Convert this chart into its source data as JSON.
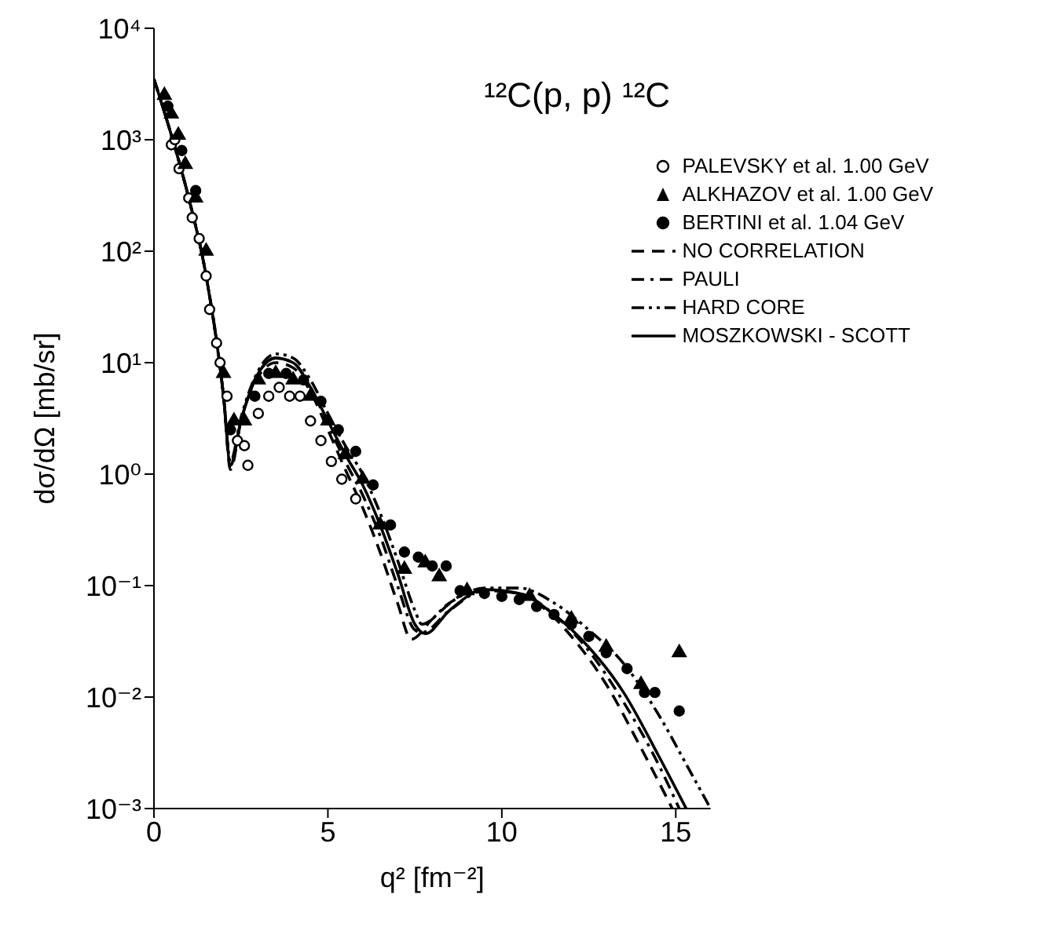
{
  "chart_data": {
    "type": "scatter",
    "title": "¹²C(p, p) ¹²C",
    "xlabel": "q² [fm⁻²]",
    "ylabel": "dσ/dΩ  [mb/sr]",
    "log": "y",
    "xlim": [
      0,
      16
    ],
    "xticks": [
      0,
      5,
      10,
      15
    ],
    "ylim": [
      0.001,
      10000
    ],
    "yticks": [
      {
        "value": 0.001,
        "label": "10⁻³"
      },
      {
        "value": 0.01,
        "label": "10⁻²"
      },
      {
        "value": 0.1,
        "label": "10⁻¹"
      },
      {
        "value": 1,
        "label": "10⁰"
      },
      {
        "value": 10,
        "label": "10¹"
      },
      {
        "value": 100,
        "label": "10²"
      },
      {
        "value": 1000,
        "label": "10³"
      },
      {
        "value": 10000,
        "label": "10⁴"
      }
    ],
    "legend": "top right",
    "series": [
      {
        "name": "PALEVSKY et al. 1.00 GeV",
        "marker": "circle",
        "color": "#000000",
        "x": [
          0.5,
          0.6,
          0.72,
          1.0,
          1.1,
          1.3,
          1.5,
          1.6,
          1.8,
          1.9,
          2.1,
          2.4,
          2.6,
          2.7,
          3.0,
          3.3,
          3.6,
          3.9,
          4.2,
          4.5,
          4.8,
          5.1,
          5.4,
          5.8
        ],
        "values": [
          900,
          1000,
          550,
          300,
          200,
          130,
          60,
          30,
          15,
          10,
          5,
          2,
          1.8,
          1.2,
          3.5,
          5,
          6,
          5,
          5,
          3,
          2,
          1.3,
          0.9,
          0.6
        ]
      },
      {
        "name": "ALKHAZOV et al. 1.00 GeV",
        "marker": "triangle",
        "color": "#000000",
        "x": [
          0.3,
          0.5,
          0.7,
          0.9,
          1.2,
          1.5,
          2.0,
          2.3,
          2.6,
          3.0,
          3.5,
          4.0,
          4.5,
          5.0,
          5.5,
          6.0,
          6.5,
          7.2,
          7.8,
          8.2,
          9.0,
          10.8,
          12.0,
          13.0,
          14.0,
          15.1
        ],
        "values": [
          2500,
          1700,
          1100,
          600,
          300,
          100,
          8,
          3,
          3,
          7,
          8,
          7,
          5,
          3,
          1.5,
          0.9,
          0.35,
          0.14,
          0.16,
          0.12,
          0.09,
          0.08,
          0.05,
          0.028,
          0.013,
          0.025
        ]
      },
      {
        "name": "BERTINI et al. 1.04 GeV",
        "marker": "circle",
        "color": "#000000",
        "x": [
          0.4,
          0.8,
          1.2,
          2.2,
          2.9,
          3.3,
          3.8,
          4.3,
          4.8,
          5.3,
          5.8,
          6.3,
          6.8,
          7.2,
          7.6,
          8.0,
          8.4,
          8.8,
          9.5,
          10.0,
          10.5,
          11.0,
          11.5,
          12.0,
          12.5,
          13.0,
          13.6,
          14.1,
          14.4,
          15.1
        ],
        "values": [
          2000,
          800,
          350,
          2.5,
          5,
          8,
          8,
          7,
          4.5,
          2.5,
          1.6,
          0.8,
          0.35,
          0.2,
          0.18,
          0.15,
          0.15,
          0.09,
          0.085,
          0.08,
          0.075,
          0.065,
          0.055,
          0.045,
          0.035,
          0.025,
          0.018,
          0.011,
          0.011,
          0.0075
        ]
      },
      {
        "name": "NO CORRELATION",
        "type": "line",
        "line_style": "dashed",
        "marker": "none",
        "color": "#000000",
        "x": [
          0,
          0.5,
          1,
          1.5,
          2,
          2.2,
          2.5,
          3,
          3.5,
          4,
          4.5,
          5,
          5.5,
          6,
          6.5,
          7,
          7.4,
          8,
          9,
          10,
          11,
          12,
          13,
          14,
          14.9
        ],
        "values": [
          3500,
          1100,
          300,
          60,
          5,
          1.1,
          3,
          7.5,
          10,
          9,
          5.5,
          2.5,
          1.1,
          0.5,
          0.2,
          0.07,
          0.033,
          0.05,
          0.085,
          0.09,
          0.07,
          0.035,
          0.013,
          0.0035,
          0.001
        ]
      },
      {
        "name": "PAULI",
        "type": "line",
        "line_style": "dashdot",
        "marker": "none",
        "color": "#000000",
        "x": [
          0,
          0.5,
          1,
          1.5,
          2,
          2.2,
          2.5,
          3,
          3.5,
          4,
          4.5,
          5,
          5.5,
          6,
          6.5,
          7,
          7.5,
          7.7,
          8.5,
          9.5,
          10.5,
          11.5,
          12.5,
          13.5,
          14.5,
          15.1
        ],
        "values": [
          3500,
          1100,
          300,
          60,
          5,
          1.2,
          3,
          8,
          11,
          10,
          6,
          2.8,
          1.3,
          0.65,
          0.28,
          0.1,
          0.04,
          0.038,
          0.06,
          0.09,
          0.085,
          0.055,
          0.026,
          0.009,
          0.0025,
          0.001
        ]
      },
      {
        "name": "HARD CORE",
        "type": "line",
        "line_style": "dashdotdot",
        "marker": "none",
        "color": "#000000",
        "x": [
          0,
          0.5,
          1,
          1.5,
          2,
          2.2,
          2.5,
          3,
          3.5,
          4,
          4.5,
          5,
          5.5,
          6,
          6.5,
          7,
          7.5,
          7.7,
          8.5,
          9.5,
          10.5,
          11.5,
          12.5,
          13.5,
          14.5,
          15.3,
          16
        ],
        "values": [
          3500,
          1100,
          300,
          60,
          5,
          1.3,
          3.2,
          8.5,
          12,
          11,
          7,
          3.5,
          1.8,
          1.0,
          0.45,
          0.17,
          0.06,
          0.045,
          0.07,
          0.095,
          0.095,
          0.07,
          0.04,
          0.02,
          0.007,
          0.0025,
          0.001
        ]
      },
      {
        "name": "MOSZKOWSKI - SCOTT",
        "type": "line",
        "line_style": "solid",
        "marker": "none",
        "color": "#000000",
        "x": [
          0,
          0.5,
          1,
          1.5,
          2,
          2.2,
          2.5,
          3,
          3.5,
          4,
          4.5,
          5,
          5.5,
          6,
          6.5,
          7,
          7.5,
          7.8,
          8.5,
          9.5,
          10.5,
          11.5,
          12.5,
          13.5,
          14.5,
          15.3
        ],
        "values": [
          3500,
          1100,
          300,
          60,
          5,
          1.2,
          3,
          8,
          11,
          10,
          6,
          3,
          1.5,
          0.8,
          0.35,
          0.13,
          0.045,
          0.037,
          0.06,
          0.092,
          0.085,
          0.055,
          0.028,
          0.011,
          0.003,
          0.001
        ]
      }
    ]
  }
}
